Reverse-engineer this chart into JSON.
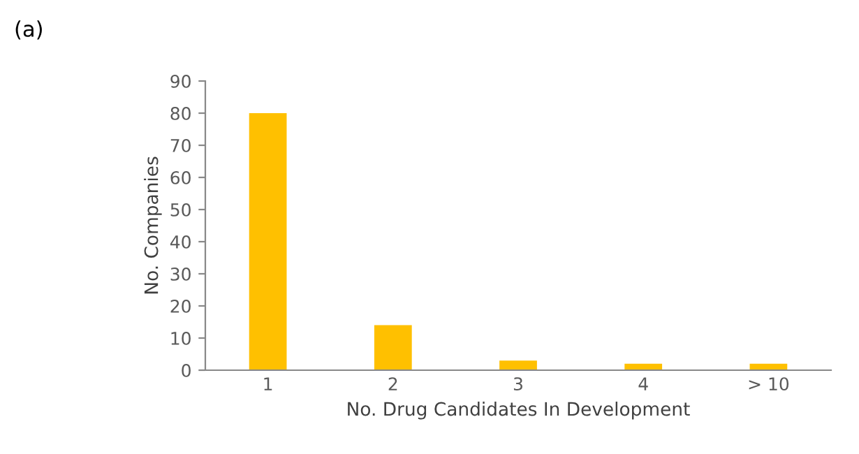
{
  "chart_data": {
    "type": "bar",
    "xlabel": "No. Drug Candidates In Development",
    "ylabel": "No. Companies",
    "categories": [
      "1",
      "2",
      "3",
      "4",
      "> 10"
    ],
    "values": [
      80,
      14,
      3,
      2,
      2
    ],
    "color": "#ffc000",
    "ylim": [
      0,
      90
    ],
    "yticks": [
      0,
      10,
      20,
      30,
      40,
      50,
      60,
      70,
      80,
      90
    ],
    "grid": false,
    "legend": false,
    "annotations": [
      "(a)"
    ]
  }
}
